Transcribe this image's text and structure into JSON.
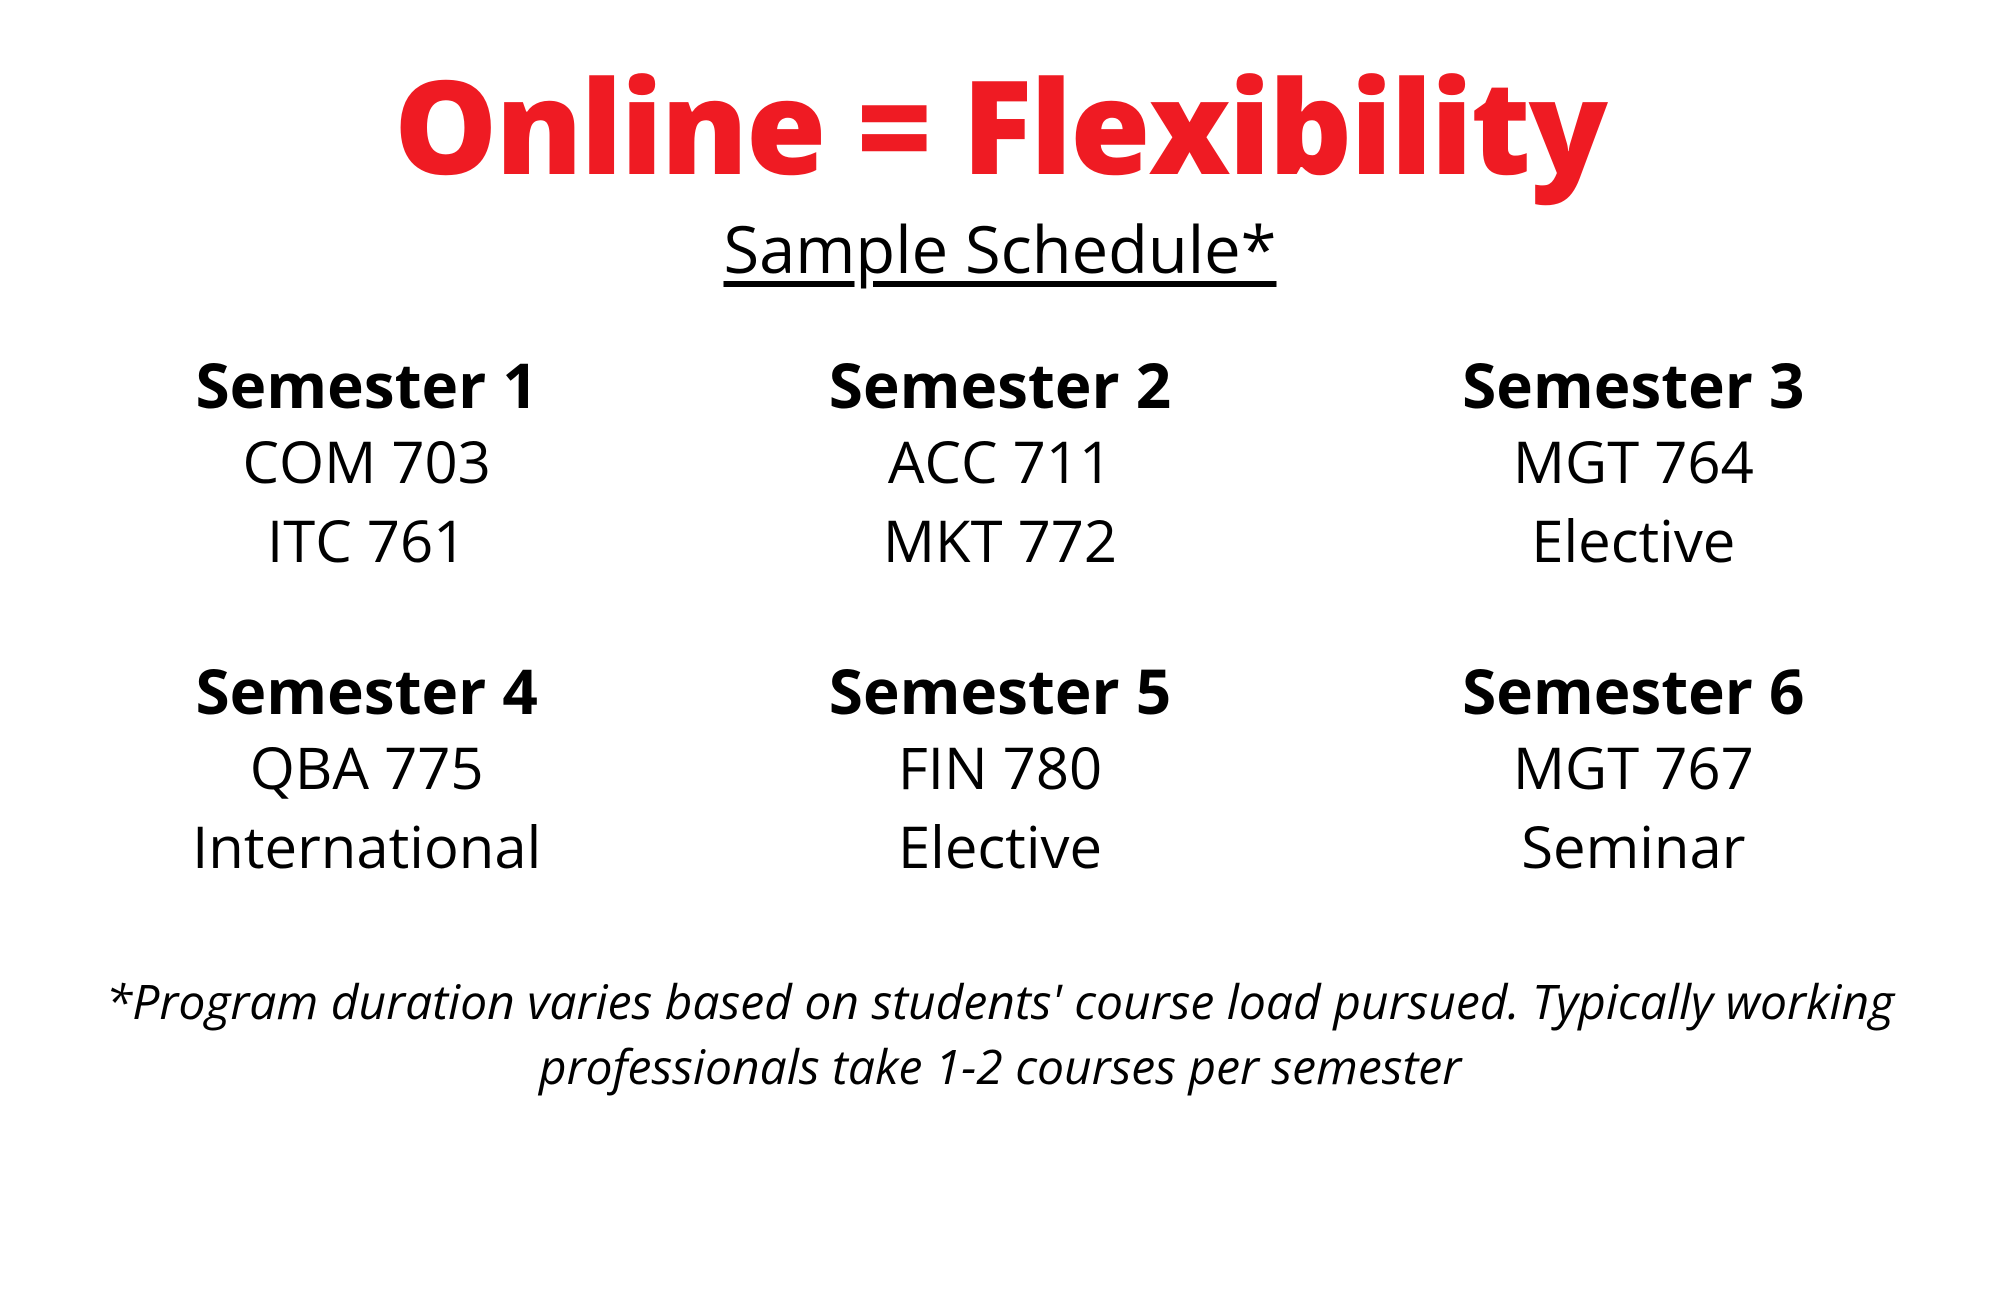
{
  "title": "Online = Flexibility",
  "subtitle": "Sample Schedule*",
  "colors": {
    "title_color": "#ef1b23",
    "text_color": "#000000",
    "background_color": "#ffffff"
  },
  "typography": {
    "title_fontsize": 130,
    "title_weight": 900,
    "subtitle_fontsize": 65,
    "subtitle_weight": 400,
    "subtitle_underline": true,
    "semester_title_fontsize": 62,
    "semester_title_weight": 700,
    "course_fontsize": 58,
    "course_weight": 400,
    "footnote_fontsize": 48,
    "footnote_style": "italic"
  },
  "layout": {
    "grid_columns": 3,
    "grid_rows": 2
  },
  "semesters": [
    {
      "title": "Semester 1",
      "courses": [
        "COM 703",
        "ITC 761"
      ]
    },
    {
      "title": "Semester 2",
      "courses": [
        "ACC 711",
        "MKT 772"
      ]
    },
    {
      "title": "Semester 3",
      "courses": [
        "MGT 764",
        "Elective"
      ]
    },
    {
      "title": "Semester 4",
      "courses": [
        "QBA 775",
        "International"
      ]
    },
    {
      "title": "Semester 5",
      "courses": [
        "FIN 780",
        "Elective"
      ]
    },
    {
      "title": "Semester 6",
      "courses": [
        "MGT 767",
        "Seminar"
      ]
    }
  ],
  "footnote": "*Program duration varies based on students' course load pursued. Typically working professionals take 1-2 courses per semester"
}
